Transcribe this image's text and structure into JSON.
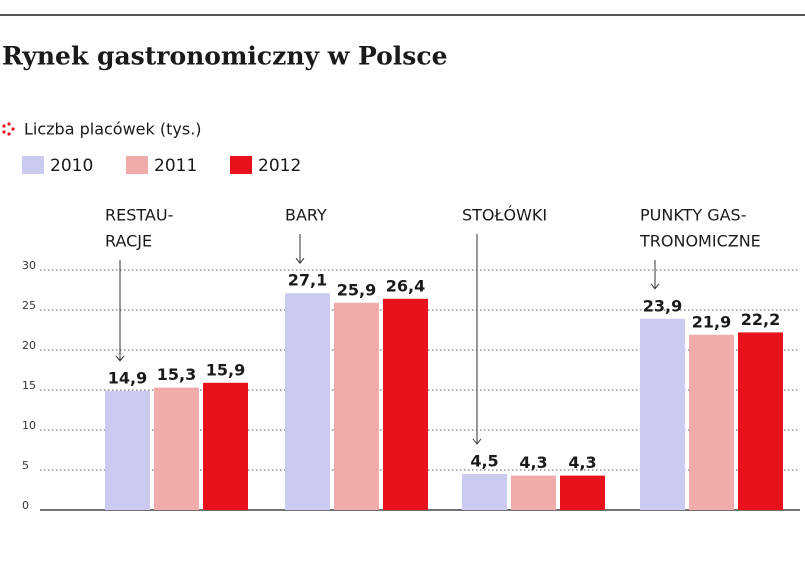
{
  "chart_data": {
    "type": "bar",
    "title": "Rynek gastronomiczny w Polsce",
    "subtitle": "Liczba placówek (tys.)",
    "categories": [
      [
        "RESTAU-",
        "RACJE"
      ],
      [
        "BARY"
      ],
      [
        "STOŁÓWKI"
      ],
      [
        "PUNKTY GAS-",
        "TRONOMICZNE"
      ]
    ],
    "series": [
      {
        "name": "2010",
        "color": "#cbcbf2",
        "values": [
          14.9,
          27.1,
          4.5,
          23.9
        ],
        "value_labels": [
          "14,9",
          "27,1",
          "4,5",
          "23,9"
        ]
      },
      {
        "name": "2011",
        "color": "#f2abab",
        "values": [
          15.3,
          25.9,
          4.3,
          21.9
        ],
        "value_labels": [
          "15,3",
          "25,9",
          "4,3",
          "21,9"
        ]
      },
      {
        "name": "2012",
        "color": "#e8121c",
        "values": [
          15.9,
          26.4,
          4.3,
          22.2
        ],
        "value_labels": [
          "15,9",
          "26,4",
          "4,3",
          "22,2"
        ]
      }
    ],
    "ylim": [
      0,
      30
    ],
    "yticks": [
      0,
      5,
      10,
      15,
      20,
      25,
      30
    ],
    "grid": true
  }
}
